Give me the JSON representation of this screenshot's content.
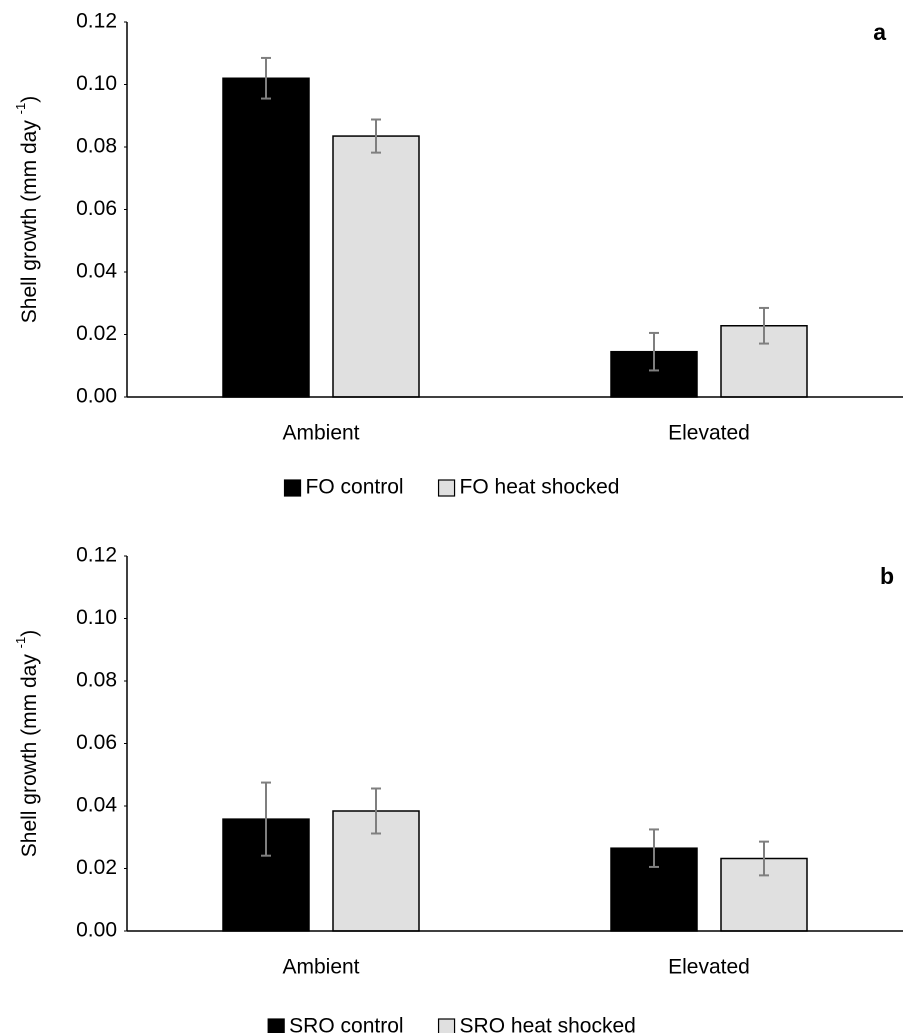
{
  "chart_data": [
    {
      "type": "bar",
      "panel_label": "a",
      "ylabel": [
        "Shell growth (mm day ",
        "-1",
        ")"
      ],
      "categories": [
        "Ambient",
        "Elevated"
      ],
      "series": [
        {
          "name": "FO control",
          "color": "#000000",
          "values": [
            0.102,
            0.0145
          ],
          "errors": [
            0.0065,
            0.006
          ]
        },
        {
          "name": "FO heat shocked",
          "color": "#e0e0e0",
          "values": [
            0.0835,
            0.0228
          ],
          "errors": [
            0.0053,
            0.0057
          ]
        }
      ],
      "ylim": [
        0,
        0.12
      ],
      "yticks": [
        {
          "value": 0,
          "label": "0.00"
        },
        {
          "value": 0.02,
          "label": "0.02"
        },
        {
          "value": 0.04,
          "label": "0.04"
        },
        {
          "value": 0.06,
          "label": "0.06"
        },
        {
          "value": 0.08,
          "label": "0.08"
        },
        {
          "value": 0.1,
          "label": "0.10"
        },
        {
          "value": 0.12,
          "label": "0.12"
        }
      ],
      "grid": false,
      "legend": "bottom"
    },
    {
      "type": "bar",
      "panel_label": "b",
      "ylabel": [
        "Shell growth (mm day ",
        "-1",
        ")"
      ],
      "categories": [
        "Ambient",
        "Elevated"
      ],
      "series": [
        {
          "name": "SRO control",
          "color": "#000000",
          "values": [
            0.0358,
            0.0265
          ],
          "errors": [
            0.0117,
            0.006
          ]
        },
        {
          "name": "SRO heat shocked",
          "color": "#e0e0e0",
          "values": [
            0.0384,
            0.0232
          ],
          "errors": [
            0.0072,
            0.0054
          ]
        }
      ],
      "ylim": [
        0,
        0.12
      ],
      "yticks": [
        {
          "value": 0,
          "label": "0.00"
        },
        {
          "value": 0.02,
          "label": "0.02"
        },
        {
          "value": 0.04,
          "label": "0.04"
        },
        {
          "value": 0.06,
          "label": "0.06"
        },
        {
          "value": 0.08,
          "label": "0.08"
        },
        {
          "value": 0.1,
          "label": "0.10"
        },
        {
          "value": 0.12,
          "label": "0.12"
        }
      ],
      "grid": false,
      "legend": "bottom"
    }
  ]
}
